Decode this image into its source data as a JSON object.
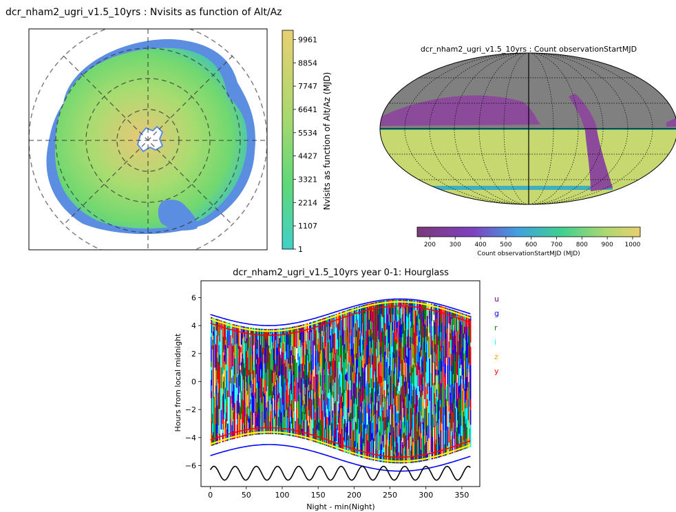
{
  "chart_data": [
    {
      "type": "heatmap",
      "projection": "polar alt/az",
      "title": "dcr_nham2_ugri_v1.5_10yrs : Nvisits as function of Alt/Az",
      "colorbar": {
        "label": "Nvisits as function of Alt/Az (MJD)",
        "ticks": [
          "9961",
          "8854",
          "7747",
          "6641",
          "5534",
          "4427",
          "3321",
          "2214",
          "1107",
          "1"
        ],
        "range": [
          1,
          10400
        ],
        "cmap": "viridis-like"
      },
      "grid": "dashed circles and radial lines"
    },
    {
      "type": "heatmap",
      "projection": "mollweide",
      "title": "dcr_nham2_ugri_v1.5_10yrs : Count observationStartMJD",
      "colorbar": {
        "label": "Count observationStartMJD (MJD)",
        "ticks": [
          "200",
          "300",
          "400",
          "500",
          "600",
          "700",
          "800",
          "900",
          "1000"
        ],
        "range": [
          150,
          1030
        ],
        "cmap": "viridis-like"
      },
      "grid": "dotted graticule"
    },
    {
      "type": "scatter",
      "title": "dcr_nham2_ugri_v1.5_10yrs  year 0-1: Hourglass",
      "xlabel": "Night - min(Night)",
      "ylabel": "Hours from local midnight",
      "xlim": [
        -13,
        375
      ],
      "ylim": [
        -7.5,
        7.2
      ],
      "xticks": [
        "0",
        "50",
        "100",
        "150",
        "200",
        "250",
        "300",
        "350"
      ],
      "yticks": [
        "6",
        "4",
        "2",
        "0",
        "−2",
        "−4",
        "−6"
      ],
      "legend": [
        {
          "name": "u",
          "color": "#800080"
        },
        {
          "name": "g",
          "color": "#0000ff"
        },
        {
          "name": "r",
          "color": "#008000"
        },
        {
          "name": "i",
          "color": "#00ffff"
        },
        {
          "name": "z",
          "color": "#ffa500"
        },
        {
          "name": "y",
          "color": "#ff0000"
        }
      ],
      "legend_position": "right",
      "curves": {
        "sunset_blue": {
          "mean": 4.95,
          "amp": 0.95,
          "x_peak": 264
        },
        "sunrise_blue": {
          "mean": -5.45,
          "amp": 0.95,
          "x_peak": 264
        },
        "twilight_red": {
          "mean": 4.35,
          "amp": 1.05,
          "x_peak": 264
        },
        "twilight_yellow": {
          "mean": 4.65,
          "amp": 1.05,
          "x_peak": 264
        },
        "moon_phase": {
          "center": -6.55,
          "amp": 0.5,
          "period_nights": 29.5
        }
      },
      "x_range_nights": [
        0,
        362
      ]
    }
  ]
}
